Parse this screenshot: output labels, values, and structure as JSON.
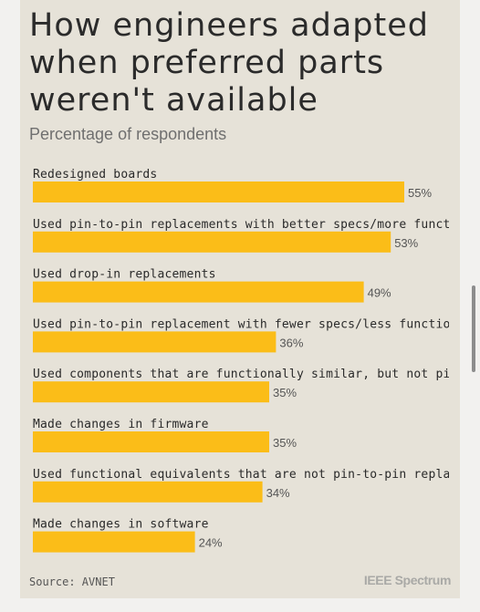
{
  "chart_data": {
    "type": "bar",
    "orientation": "horizontal",
    "title": "How engineers adapted when preferred parts weren't available",
    "subtitle": "Percentage of respondents",
    "categories": [
      "Redesigned boards",
      "Used pin-to-pin replacements with better specs/more functionality",
      "Used drop-in replacements",
      "Used pin-to-pin replacement with fewer specs/less functionality",
      "Used components that are functionally similar, but not pin-to-pin",
      "Made changes in firmware",
      "Used functional equivalents that are not pin-to-pin replacements",
      "Made changes in software"
    ],
    "values": [
      55,
      53,
      49,
      36,
      35,
      35,
      34,
      24
    ],
    "value_suffix": "%",
    "xlim": [
      0,
      60
    ],
    "bar_color": "#fbbd18",
    "grid": false,
    "legend": "none"
  },
  "source": "Source: AVNET",
  "logo": "IEEE Spectrum"
}
